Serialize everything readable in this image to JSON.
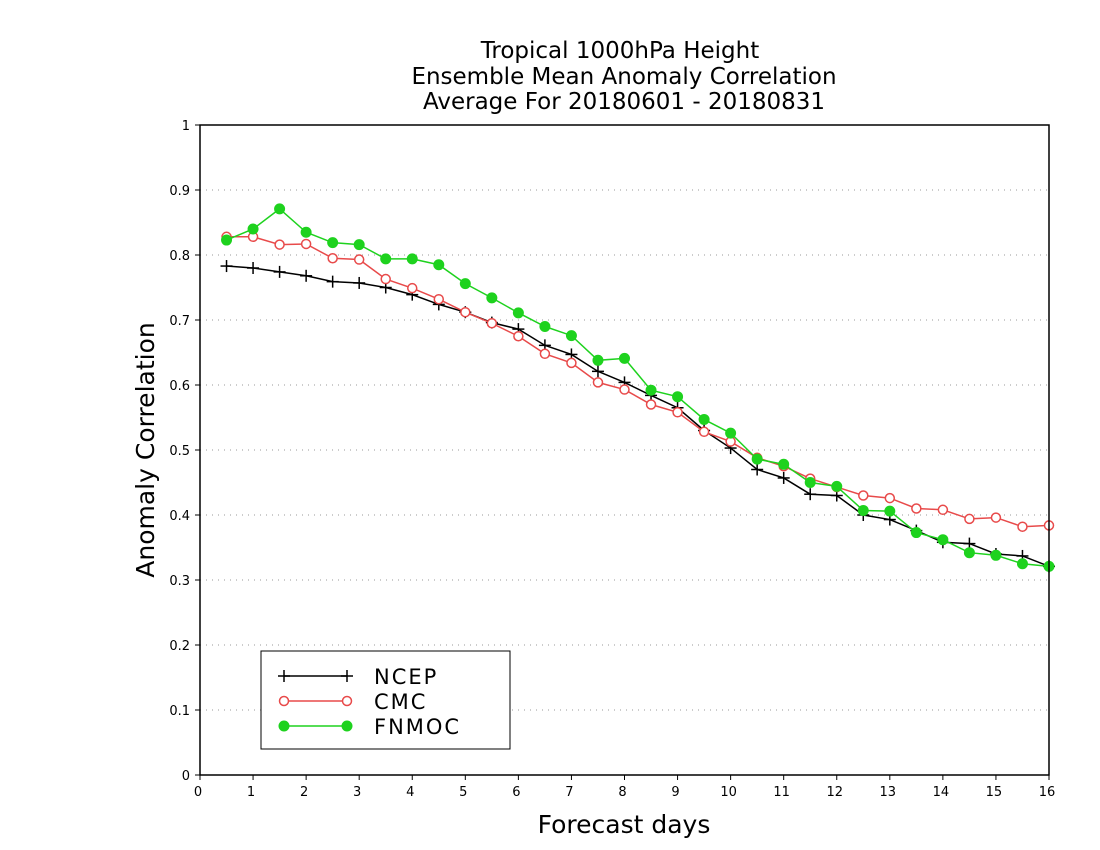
{
  "chart_data": {
    "type": "line",
    "title": [
      "Tropical 1000hPa Height",
      "Ensemble Mean Anomaly Correlation",
      "Average For 20180601 - 20180831"
    ],
    "xlabel": "Forecast days",
    "ylabel": "Anomaly Correlation",
    "xlim": [
      0,
      16
    ],
    "ylim": [
      0,
      1
    ],
    "xticks": [
      "0",
      "1",
      "2",
      "3",
      "4",
      "5",
      "6",
      "7",
      "8",
      "9",
      "10",
      "11",
      "12",
      "13",
      "14",
      "15",
      "16"
    ],
    "yticks": [
      "0",
      "0.1",
      "0.2",
      "0.3",
      "0.4",
      "0.5",
      "0.6",
      "0.7",
      "0.8",
      "0.9",
      "1"
    ],
    "grid": "horizontal dotted",
    "legend_position": "bottom-left",
    "x": [
      0.5,
      1,
      1.5,
      2,
      2.5,
      3,
      3.5,
      4,
      4.5,
      5,
      5.5,
      6,
      6.5,
      7,
      7.5,
      8,
      8.5,
      9,
      9.5,
      10,
      10.5,
      11,
      11.5,
      12,
      12.5,
      13,
      13.5,
      14,
      14.5,
      15,
      15.5,
      16
    ],
    "series": [
      {
        "name": "NCEP",
        "color": "#000000",
        "marker": "plus",
        "values": [
          0.783,
          0.78,
          0.774,
          0.768,
          0.759,
          0.757,
          0.75,
          0.739,
          0.724,
          0.712,
          0.696,
          0.686,
          0.661,
          0.647,
          0.621,
          0.604,
          0.584,
          0.565,
          0.53,
          0.503,
          0.47,
          0.457,
          0.432,
          0.43,
          0.4,
          0.393,
          0.376,
          0.358,
          0.356,
          0.34,
          0.337,
          0.321
        ]
      },
      {
        "name": "CMC",
        "color": "#e84a4a",
        "marker": "open-circle",
        "values": [
          0.828,
          0.828,
          0.816,
          0.817,
          0.795,
          0.793,
          0.763,
          0.749,
          0.732,
          0.712,
          0.695,
          0.675,
          0.648,
          0.634,
          0.604,
          0.593,
          0.57,
          0.558,
          0.528,
          0.513,
          0.488,
          0.475,
          0.456,
          0.443,
          0.43,
          0.426,
          0.41,
          0.408,
          0.394,
          0.396,
          0.382,
          0.384
        ]
      },
      {
        "name": "FNMOC",
        "color": "#1ed21e",
        "marker": "filled-circle",
        "values": [
          0.823,
          0.84,
          0.871,
          0.835,
          0.819,
          0.816,
          0.794,
          0.794,
          0.785,
          0.756,
          0.734,
          0.711,
          0.69,
          0.676,
          0.638,
          0.641,
          0.592,
          0.582,
          0.547,
          0.526,
          0.486,
          0.478,
          0.45,
          0.444,
          0.407,
          0.406,
          0.373,
          0.362,
          0.342,
          0.338,
          0.325,
          0.321
        ]
      }
    ]
  }
}
